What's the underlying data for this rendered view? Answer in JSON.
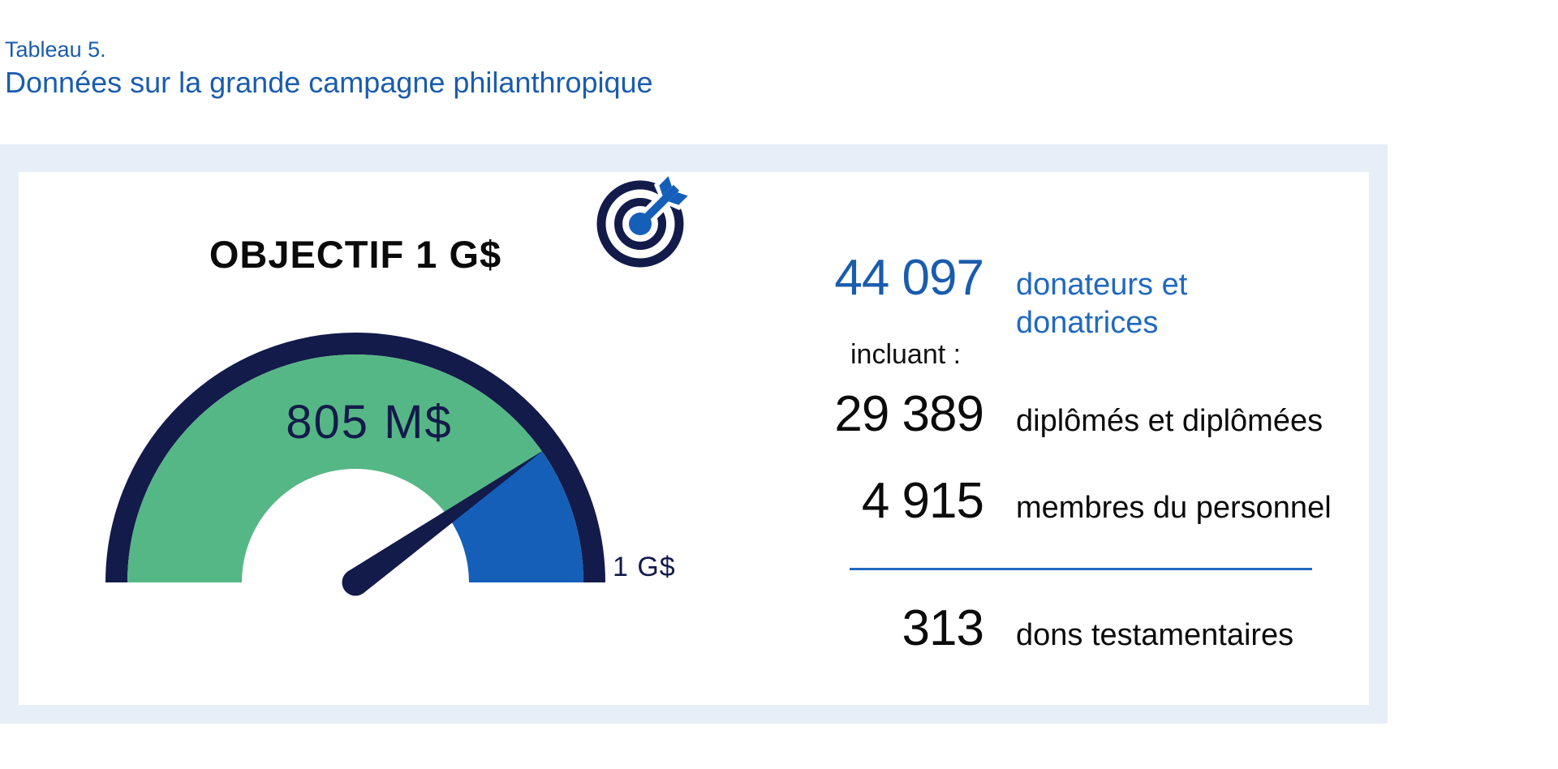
{
  "header": {
    "eyebrow": "Tableau 5.",
    "title": "Données sur la grande campagne philanthropique"
  },
  "gauge": {
    "heading": "OBJECTIF 1 G$",
    "value_label": "805 M$",
    "max_label": "1 G$"
  },
  "stats": {
    "including_label": "incluant :",
    "rows": [
      {
        "value": "44 097",
        "label": "donateurs et donatrices",
        "label_line1": "donateurs et",
        "label_line2": "donatrices"
      },
      {
        "value": "29 389",
        "label": "diplômés et diplômées"
      },
      {
        "value": "4 915",
        "label": "membres du personnel"
      },
      {
        "value": "313",
        "label": "dons testamentaires"
      }
    ]
  },
  "colors": {
    "accent_blue": "#1A5CAD",
    "navy": "#131B4A",
    "green": "#56B786",
    "gauge_blue": "#155FB9",
    "divider_blue": "#2169C0",
    "panel_border": "#E6EEF7",
    "text_black": "#0B0B0B"
  },
  "chart_data": {
    "type": "gauge",
    "title": "OBJECTIF 1 G$",
    "min": 0,
    "max": 1000,
    "value": 805,
    "unit": "M$",
    "value_label": "805 M$",
    "max_label": "1 G$",
    "segments": [
      {
        "name": "montant-atteint",
        "from": 0,
        "to": 805,
        "color": "#56B786"
      },
      {
        "name": "montant-restant",
        "from": 805,
        "to": 1000,
        "color": "#155FB9"
      }
    ],
    "stats": [
      {
        "value": 44097,
        "display": "44 097",
        "label": "donateurs et donatrices"
      },
      {
        "value": 29389,
        "display": "29 389",
        "label": "diplômés et diplômées"
      },
      {
        "value": 4915,
        "display": "4 915",
        "label": "membres du personnel"
      },
      {
        "value": 313,
        "display": "313",
        "label": "dons testamentaires"
      }
    ]
  }
}
